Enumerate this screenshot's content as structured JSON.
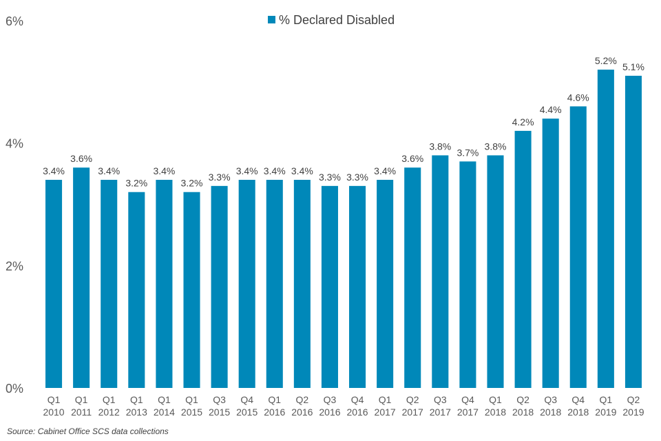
{
  "chart_data": {
    "type": "bar",
    "title": "",
    "xlabel": "",
    "ylabel": "",
    "ylim": [
      0,
      6
    ],
    "yticks": [
      "0%",
      "2%",
      "4%",
      "6%"
    ],
    "ytick_values": [
      0,
      2,
      4,
      6
    ],
    "categories": [
      [
        "Q1",
        "2010"
      ],
      [
        "Q1",
        "2011"
      ],
      [
        "Q1",
        "2012"
      ],
      [
        "Q1",
        "2013"
      ],
      [
        "Q1",
        "2014"
      ],
      [
        "Q1",
        "2015"
      ],
      [
        "Q3",
        "2015"
      ],
      [
        "Q4",
        "2015"
      ],
      [
        "Q1",
        "2016"
      ],
      [
        "Q2",
        "2016"
      ],
      [
        "Q3",
        "2016"
      ],
      [
        "Q4",
        "2016"
      ],
      [
        "Q1",
        "2017"
      ],
      [
        "Q2",
        "2017"
      ],
      [
        "Q3",
        "2017"
      ],
      [
        "Q4",
        "2017"
      ],
      [
        "Q1",
        "2018"
      ],
      [
        "Q2",
        "2018"
      ],
      [
        "Q3",
        "2018"
      ],
      [
        "Q4",
        "2018"
      ],
      [
        "Q1",
        "2019"
      ],
      [
        "Q2",
        "2019"
      ]
    ],
    "series": [
      {
        "name": "% Declared Disabled",
        "color": "#0088b9",
        "values": [
          3.4,
          3.6,
          3.4,
          3.2,
          3.4,
          3.2,
          3.3,
          3.4,
          3.4,
          3.4,
          3.3,
          3.3,
          3.4,
          3.6,
          3.8,
          3.7,
          3.8,
          4.2,
          4.4,
          4.6,
          5.2,
          5.1
        ],
        "labels": [
          "3.4%",
          "3.6%",
          "3.4%",
          "3.2%",
          "3.4%",
          "3.2%",
          "3.3%",
          "3.4%",
          "3.4%",
          "3.4%",
          "3.3%",
          "3.3%",
          "3.4%",
          "3.6%",
          "3.8%",
          "3.7%",
          "3.8%",
          "4.2%",
          "4.4%",
          "4.6%",
          "5.2%",
          "5.1%"
        ]
      }
    ],
    "legend": {
      "position": "top-center"
    },
    "grid": false
  },
  "source": "Source: Cabinet Office SCS data collections"
}
